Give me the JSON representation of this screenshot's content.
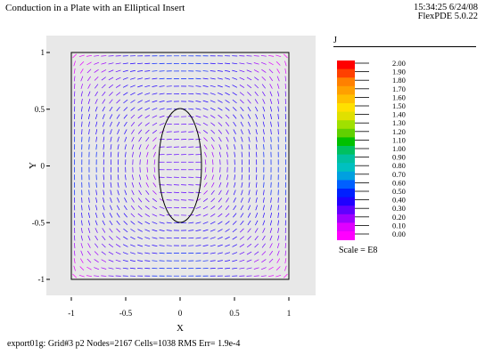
{
  "header": {
    "title": "Conduction in a Plate with an Elliptical Insert",
    "timestamp": "15:34:25 6/24/08",
    "version": "FlexPDE 5.0.22"
  },
  "legend": {
    "title": "J",
    "scale_label": "Scale = E8",
    "labels": [
      "2.00",
      "1.90",
      "1.80",
      "1.70",
      "1.60",
      "1.50",
      "1.40",
      "1.30",
      "1.20",
      "1.10",
      "1.00",
      "0.90",
      "0.80",
      "0.70",
      "0.60",
      "0.50",
      "0.40",
      "0.30",
      "0.20",
      "0.10",
      "0.00"
    ],
    "colors": [
      "#ff0000",
      "#ff4000",
      "#ff8000",
      "#ffa000",
      "#ffc000",
      "#ffe000",
      "#e0e000",
      "#a0e000",
      "#60d000",
      "#00c000",
      "#00c060",
      "#00c0a0",
      "#00c0c0",
      "#00a0e0",
      "#0060ff",
      "#0020ff",
      "#2000ff",
      "#6000ff",
      "#a000ff",
      "#e000ff",
      "#ff00ff"
    ]
  },
  "footer": {
    "status": "export01g:  Grid#3  p2  Nodes=2167 Cells=1038 RMS Err= 1.9e-4"
  },
  "chart_data": {
    "type": "vector-field",
    "xlabel": "X",
    "ylabel": "Y",
    "xlim": [
      -1,
      1
    ],
    "ylim": [
      -1,
      1
    ],
    "xticks": [
      "-1",
      "-0.5",
      "0",
      "0.5",
      "1"
    ],
    "yticks": [
      "1",
      "0.5",
      "0",
      "-0.5",
      "-1"
    ],
    "insert": {
      "shape": "ellipse",
      "cx": 0,
      "cy": 0,
      "rx": 0.2,
      "ry": 0.5
    },
    "grid": false,
    "legend_position": "right"
  }
}
